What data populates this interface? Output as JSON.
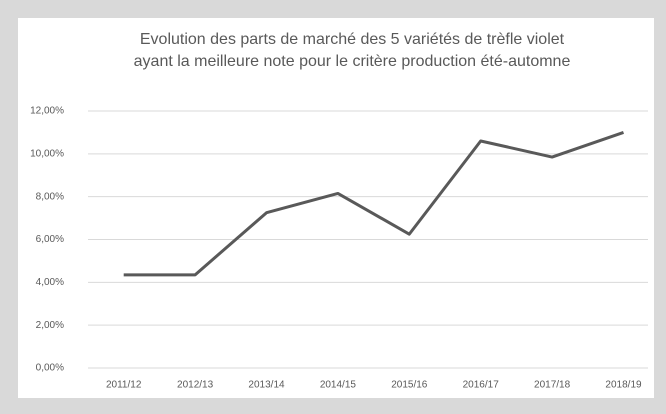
{
  "chart_data": {
    "type": "line",
    "title": [
      "Evolution des parts de marché des 5 variétés de trèfle violet",
      "ayant la meilleure note pour le critère production été-automne"
    ],
    "categories": [
      "2011/12",
      "2012/13",
      "2013/14",
      "2014/15",
      "2015/16",
      "2016/17",
      "2017/18",
      "2018/19"
    ],
    "values": [
      4.35,
      4.35,
      7.25,
      8.15,
      6.25,
      10.6,
      9.85,
      11.0
    ],
    "color": "#595959",
    "ylim": [
      0,
      12
    ],
    "yticks": [
      {
        "value": 0,
        "label": "0,00%"
      },
      {
        "value": 2,
        "label": "2,00%"
      },
      {
        "value": 4,
        "label": "4,00%"
      },
      {
        "value": 6,
        "label": "6,00%"
      },
      {
        "value": 8,
        "label": "8,00%"
      },
      {
        "value": 10,
        "label": "10,00%"
      },
      {
        "value": 12,
        "label": "12,00%"
      }
    ],
    "grid": true
  }
}
